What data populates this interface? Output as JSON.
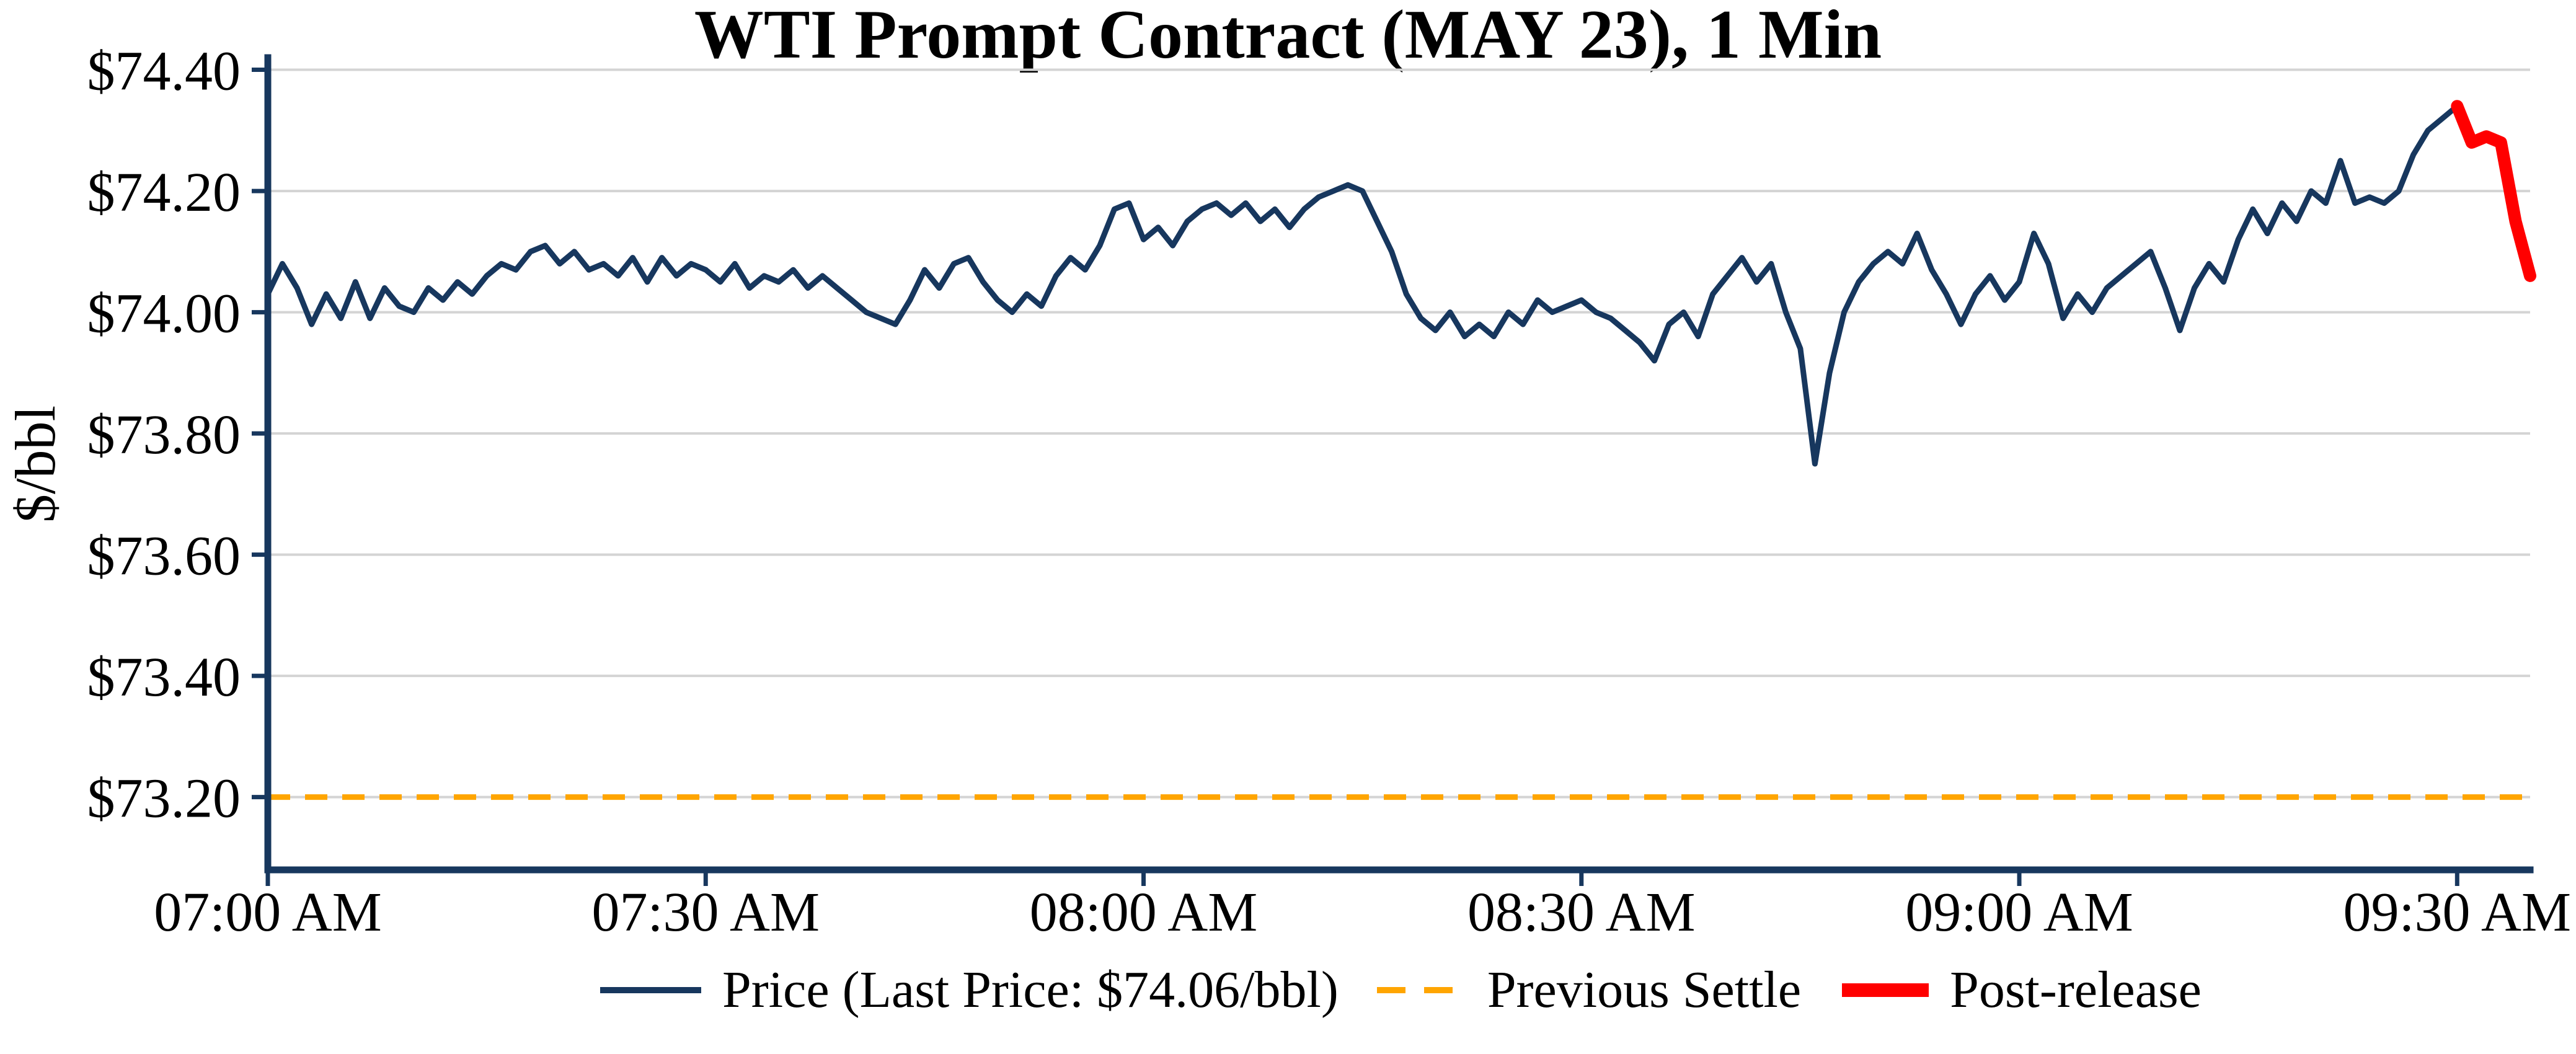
{
  "figure": {
    "background": "#ffffff"
  },
  "chart_data": {
    "type": "line",
    "title": "WTI Prompt Contract (MAY 23), 1 Min",
    "xlabel": "",
    "ylabel": "$/bbl",
    "x_unit": "minutes after 07:00 AM",
    "xlim": [
      0,
      155
    ],
    "ylim": [
      73.08,
      74.42
    ],
    "grid": "horizontal",
    "legend_position": "bottom-center",
    "axis_color": "#17375e",
    "grid_color": "#d4d4d4",
    "last_price_label": "$74.06/bbl",
    "previous_settle_value": 73.2,
    "y_ticks": [
      {
        "value": 73.2,
        "label": "$73.20"
      },
      {
        "value": 73.4,
        "label": "$73.40"
      },
      {
        "value": 73.6,
        "label": "$73.60"
      },
      {
        "value": 73.8,
        "label": "$73.80"
      },
      {
        "value": 74.0,
        "label": "$74.00"
      },
      {
        "value": 74.2,
        "label": "$74.20"
      },
      {
        "value": 74.4,
        "label": "$74.40"
      }
    ],
    "x_ticks": [
      {
        "value": 0,
        "label": "07:00 AM"
      },
      {
        "value": 30,
        "label": "07:30 AM"
      },
      {
        "value": 60,
        "label": "08:00 AM"
      },
      {
        "value": 90,
        "label": "08:30 AM"
      },
      {
        "value": 120,
        "label": "09:00 AM"
      },
      {
        "value": 150,
        "label": "09:30 AM"
      }
    ],
    "series": [
      {
        "id": "price",
        "name": "Price (Last Price: $74.06/bbl)",
        "type": "line",
        "color": "#17375e",
        "style": "solid",
        "width": 9,
        "x": [
          0,
          1,
          2,
          3,
          4,
          5,
          6,
          7,
          8,
          9,
          10,
          11,
          12,
          13,
          14,
          15,
          16,
          17,
          18,
          19,
          20,
          21,
          22,
          23,
          24,
          25,
          26,
          27,
          28,
          29,
          30,
          31,
          32,
          33,
          34,
          35,
          36,
          37,
          38,
          39,
          40,
          41,
          42,
          43,
          44,
          45,
          46,
          47,
          48,
          49,
          50,
          51,
          52,
          53,
          54,
          55,
          56,
          57,
          58,
          59,
          60,
          61,
          62,
          63,
          64,
          65,
          66,
          67,
          68,
          69,
          70,
          71,
          72,
          73,
          74,
          75,
          76,
          77,
          78,
          79,
          80,
          81,
          82,
          83,
          84,
          85,
          86,
          87,
          88,
          89,
          90,
          91,
          92,
          93,
          94,
          95,
          96,
          97,
          98,
          99,
          100,
          101,
          102,
          103,
          104,
          105,
          106,
          107,
          108,
          109,
          110,
          111,
          112,
          113,
          114,
          115,
          116,
          117,
          118,
          119,
          120,
          121,
          122,
          123,
          124,
          125,
          126,
          127,
          128,
          129,
          130,
          131,
          132,
          133,
          134,
          135,
          136,
          137,
          138,
          139,
          140,
          141,
          142,
          143,
          144,
          145,
          146,
          147,
          148,
          149,
          150
        ],
        "y": [
          74.03,
          74.08,
          74.04,
          73.98,
          74.03,
          73.99,
          74.05,
          73.99,
          74.04,
          74.01,
          74.0,
          74.04,
          74.02,
          74.05,
          74.03,
          74.06,
          74.08,
          74.07,
          74.1,
          74.11,
          74.08,
          74.1,
          74.07,
          74.08,
          74.06,
          74.09,
          74.05,
          74.09,
          74.06,
          74.08,
          74.07,
          74.05,
          74.08,
          74.04,
          74.06,
          74.05,
          74.07,
          74.04,
          74.06,
          74.04,
          74.02,
          74.0,
          73.99,
          73.98,
          74.02,
          74.07,
          74.04,
          74.08,
          74.09,
          74.05,
          74.02,
          74.0,
          74.03,
          74.01,
          74.06,
          74.09,
          74.07,
          74.11,
          74.17,
          74.18,
          74.12,
          74.14,
          74.11,
          74.15,
          74.17,
          74.18,
          74.16,
          74.18,
          74.15,
          74.17,
          74.14,
          74.17,
          74.19,
          74.2,
          74.21,
          74.2,
          74.15,
          74.1,
          74.03,
          73.99,
          73.97,
          74.0,
          73.96,
          73.98,
          73.96,
          74.0,
          73.98,
          74.02,
          74.0,
          74.01,
          74.02,
          74.0,
          73.99,
          73.97,
          73.95,
          73.92,
          73.98,
          74.0,
          73.96,
          74.03,
          74.06,
          74.09,
          74.05,
          74.08,
          74.0,
          73.94,
          73.75,
          73.9,
          74.0,
          74.05,
          74.08,
          74.1,
          74.08,
          74.13,
          74.07,
          74.03,
          73.98,
          74.03,
          74.06,
          74.02,
          74.05,
          74.13,
          74.08,
          73.99,
          74.03,
          74.0,
          74.04,
          74.06,
          74.08,
          74.1,
          74.04,
          73.97,
          74.04,
          74.08,
          74.05,
          74.12,
          74.17,
          74.13,
          74.18,
          74.15,
          74.2,
          74.18,
          74.25,
          74.18,
          74.19,
          74.18,
          74.2,
          74.26,
          74.3,
          74.32,
          74.34
        ]
      },
      {
        "id": "previous-settle",
        "name": "Previous Settle",
        "type": "hline",
        "color": "#FFA500",
        "style": "dashed",
        "width": 9,
        "value": 73.2
      },
      {
        "id": "post-release",
        "name": "Post-release",
        "type": "line",
        "color": "#FF0000",
        "style": "solid",
        "width": 20,
        "x": [
          150,
          151,
          152,
          153,
          154,
          155
        ],
        "y": [
          74.34,
          74.28,
          74.29,
          74.28,
          74.15,
          74.06
        ]
      }
    ]
  }
}
